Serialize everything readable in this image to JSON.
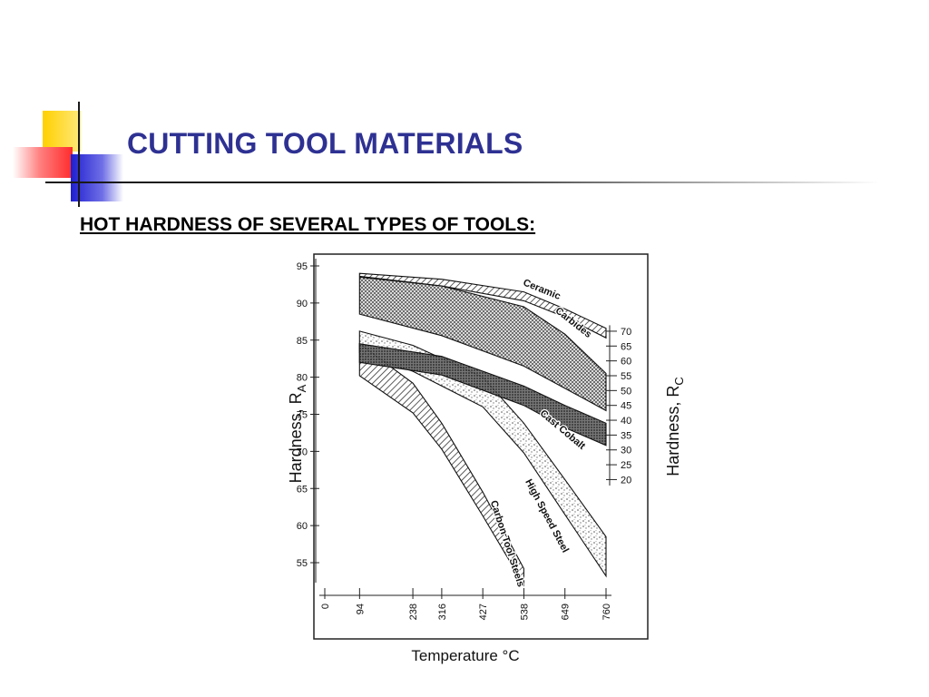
{
  "slide": {
    "title": "CUTTING TOOL MATERIALS",
    "subtitle": "HOT HARDNESS OF SEVERAL TYPES OF TOOLS:",
    "title_color": "#2e3192",
    "accent_colors": [
      "#ffd700",
      "#ff3b3b",
      "#2b2bd6"
    ]
  },
  "chart_data": {
    "type": "area",
    "xlabel": "Temperature °C",
    "ylabel_left": "Hardness, R",
    "ylabel_left_sub": "A",
    "ylabel_right": "Hardness, R",
    "ylabel_right_sub": "C",
    "x_ticks": [
      "0",
      "94",
      "238",
      "316",
      "427",
      "538",
      "649",
      "760"
    ],
    "y_left_ticks": [
      95,
      90,
      85,
      80,
      75,
      70,
      65,
      60,
      55
    ],
    "y_right_ticks": [
      70,
      65,
      60,
      55,
      50,
      45,
      40,
      35,
      30,
      25,
      20
    ],
    "ylim_left": [
      51,
      95
    ],
    "bands": [
      {
        "name": "Ceramic",
        "upper": [
          [
            94,
            94
          ],
          [
            316,
            93.2
          ],
          [
            538,
            91.5
          ],
          [
            649,
            89.2
          ],
          [
            760,
            86.6
          ]
        ],
        "lower": [
          [
            760,
            85.3
          ],
          [
            649,
            88.1
          ],
          [
            538,
            90.3
          ],
          [
            316,
            92.3
          ],
          [
            94,
            93.6
          ]
        ]
      },
      {
        "name": "Carbides",
        "upper": [
          [
            94,
            93.5
          ],
          [
            316,
            92.3
          ],
          [
            538,
            89.5
          ],
          [
            649,
            85.8
          ],
          [
            760,
            80.5
          ]
        ],
        "lower": [
          [
            760,
            75.5
          ],
          [
            649,
            78.5
          ],
          [
            538,
            81.5
          ],
          [
            316,
            85.6
          ],
          [
            94,
            88.5
          ]
        ]
      },
      {
        "name": "Cast Cobalt",
        "upper": [
          [
            94,
            84.5
          ],
          [
            316,
            82.8
          ],
          [
            538,
            78.8
          ],
          [
            649,
            76.2
          ],
          [
            760,
            73.8
          ]
        ],
        "lower": [
          [
            760,
            70.8
          ],
          [
            649,
            73.2
          ],
          [
            538,
            76.2
          ],
          [
            316,
            80.3
          ],
          [
            94,
            82
          ]
        ]
      },
      {
        "name": "High Speed Steel",
        "upper": [
          [
            94,
            86.2
          ],
          [
            238,
            84.3
          ],
          [
            427,
            80
          ],
          [
            538,
            73.8
          ],
          [
            649,
            66.2
          ],
          [
            760,
            58.5
          ]
        ],
        "lower": [
          [
            760,
            53.2
          ],
          [
            649,
            61.5
          ],
          [
            538,
            69.8
          ],
          [
            427,
            76
          ],
          [
            238,
            80.8
          ],
          [
            94,
            83.3
          ]
        ]
      },
      {
        "name": "Carbon Tool Steels",
        "upper": [
          [
            94,
            84.5
          ],
          [
            238,
            79.2
          ],
          [
            316,
            73.8
          ],
          [
            427,
            64.5
          ],
          [
            538,
            54.2
          ]
        ],
        "lower": [
          [
            538,
            52
          ],
          [
            427,
            61.3
          ],
          [
            316,
            70.3
          ],
          [
            238,
            75.2
          ],
          [
            94,
            80.2
          ]
        ]
      }
    ],
    "labels": [
      "Ceramic",
      "Carbides",
      "Cast Cobalt",
      "High Speed Steel",
      "Carbon Tool Steels"
    ]
  }
}
